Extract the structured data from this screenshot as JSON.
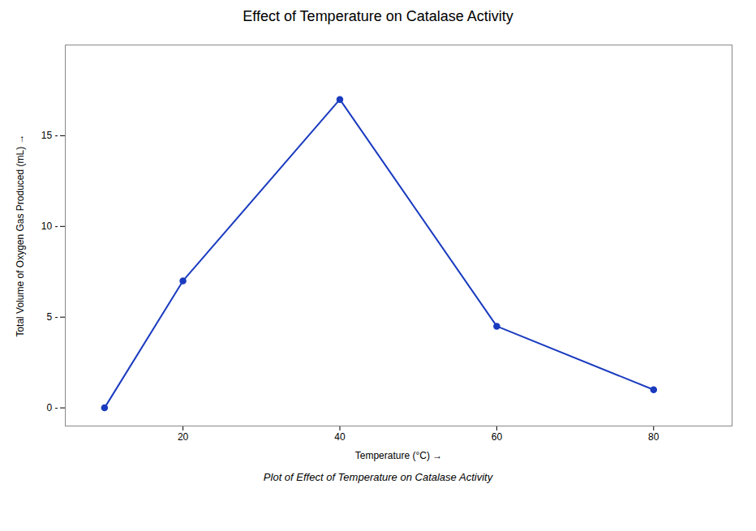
{
  "chart_data": {
    "type": "line",
    "title": "Effect of Temperature on Catalase Activity",
    "xlabel": "Temperature (°C)",
    "ylabel": "Total Volume of Oxygen Gas Produced (mL)",
    "caption": "Plot of Effect of Temperature on Catalase Activity",
    "x": [
      10,
      20,
      40,
      60,
      80
    ],
    "values": [
      0,
      7,
      17,
      4.5,
      1
    ],
    "color": "#1a3bbf",
    "marker": "circle",
    "xlim": [
      5,
      90
    ],
    "ylim": [
      -1,
      20
    ],
    "xticks": [
      20,
      40,
      60,
      80
    ],
    "yticks": [
      {
        "value": 0,
        "label": "0 -"
      },
      {
        "value": 5,
        "label": "5 -"
      },
      {
        "value": 10,
        "label": "10 -"
      },
      {
        "value": 15,
        "label": "15 -"
      }
    ],
    "grid": false
  }
}
